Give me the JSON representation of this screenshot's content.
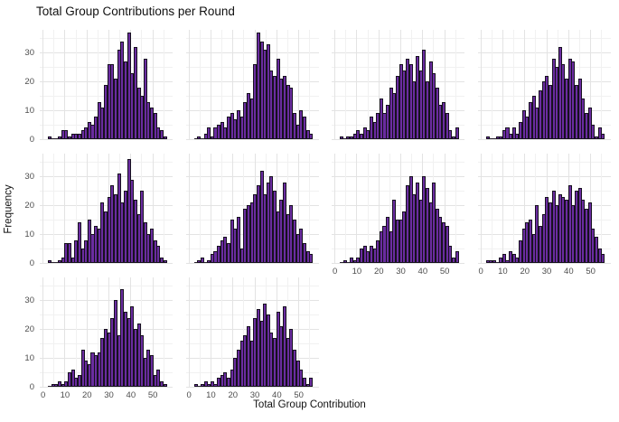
{
  "chart_data": {
    "type": "bar",
    "subtype": "faceted-histograms",
    "title": "Total Group Contributions per Round",
    "xlabel": "Total Group Contribution",
    "ylabel": "Frequency",
    "x_ticks": [
      0,
      10,
      20,
      30,
      40,
      50
    ],
    "y_ticks": [
      0,
      10,
      20,
      30
    ],
    "xlim": [
      -1.5,
      59
    ],
    "ylim": [
      0,
      38
    ],
    "grid": true,
    "legend": false,
    "bin_width": 1.5,
    "bin_start": 2.25,
    "facet_columns": 4,
    "facets": [
      {
        "values": [
          1,
          0,
          0,
          1,
          3,
          3,
          1,
          2,
          2,
          2,
          3,
          4,
          6,
          5,
          8,
          13,
          11,
          19,
          26,
          26,
          21,
          31,
          34,
          27,
          37,
          23,
          32,
          18,
          15,
          28,
          13,
          11,
          9,
          4,
          3,
          1
        ]
      },
      {
        "values": [
          0,
          1,
          0,
          2,
          4,
          1,
          4,
          5,
          6,
          4,
          8,
          9,
          7,
          10,
          8,
          13,
          16,
          14,
          26,
          37,
          34,
          31,
          33,
          24,
          22,
          28,
          21,
          22,
          19,
          18,
          9,
          5,
          10,
          8,
          3,
          2
        ]
      },
      {
        "values": [
          1,
          0,
          1,
          1,
          2,
          3,
          2,
          4,
          3,
          8,
          6,
          9,
          14,
          9,
          12,
          18,
          16,
          22,
          26,
          24,
          28,
          26,
          20,
          29,
          24,
          31,
          20,
          27,
          23,
          18,
          12,
          13,
          9,
          3,
          1,
          4
        ]
      },
      {
        "values": [
          1,
          0,
          0,
          1,
          1,
          3,
          4,
          2,
          4,
          2,
          6,
          10,
          8,
          13,
          15,
          11,
          17,
          20,
          22,
          19,
          28,
          25,
          32,
          26,
          21,
          28,
          27,
          19,
          21,
          14,
          9,
          11,
          5,
          1,
          4,
          2
        ]
      },
      {
        "values": [
          1,
          0,
          0,
          1,
          2,
          7,
          7,
          2,
          8,
          14,
          5,
          8,
          15,
          10,
          13,
          12,
          21,
          18,
          23,
          27,
          24,
          31,
          21,
          25,
          36,
          29,
          22,
          17,
          25,
          14,
          10,
          12,
          8,
          6,
          2,
          1
        ]
      },
      {
        "values": [
          0,
          1,
          2,
          0,
          1,
          3,
          4,
          6,
          8,
          9,
          7,
          15,
          12,
          16,
          5,
          19,
          20,
          21,
          24,
          27,
          32,
          24,
          28,
          30,
          25,
          18,
          22,
          28,
          17,
          20,
          15,
          10,
          12,
          7,
          4,
          3
        ]
      },
      {
        "values": [
          0,
          1,
          0,
          2,
          1,
          2,
          5,
          6,
          4,
          6,
          5,
          8,
          11,
          13,
          16,
          11,
          22,
          15,
          15,
          18,
          27,
          30,
          24,
          28,
          22,
          30,
          26,
          21,
          28,
          19,
          16,
          14,
          13,
          6,
          2,
          4
        ]
      },
      {
        "values": [
          1,
          1,
          1,
          0,
          2,
          3,
          1,
          4,
          3,
          2,
          8,
          12,
          14,
          15,
          10,
          20,
          13,
          17,
          23,
          21,
          25,
          20,
          24,
          23,
          22,
          27,
          20,
          25,
          26,
          22,
          19,
          21,
          12,
          9,
          5,
          3
        ]
      },
      {
        "values": [
          0,
          1,
          1,
          2,
          1,
          2,
          5,
          6,
          3,
          4,
          13,
          9,
          8,
          12,
          11,
          12,
          17,
          20,
          19,
          24,
          30,
          18,
          34,
          26,
          24,
          28,
          20,
          22,
          18,
          10,
          13,
          11,
          4,
          6,
          2,
          1
        ]
      },
      {
        "values": [
          1,
          0,
          1,
          2,
          1,
          2,
          1,
          3,
          4,
          5,
          3,
          6,
          10,
          13,
          16,
          18,
          21,
          16,
          24,
          27,
          23,
          29,
          25,
          19,
          17,
          26,
          21,
          28,
          17,
          20,
          13,
          9,
          6,
          3,
          1,
          3
        ]
      }
    ]
  },
  "colors": {
    "bar_fill": "#6a2ca0",
    "bar_stroke": "#17111f",
    "grid_major": "#e3e3e3",
    "grid_minor": "#f1f1f1",
    "tick_text": "#4d4d4d",
    "title_text": "#111111",
    "background": "#ffffff"
  }
}
